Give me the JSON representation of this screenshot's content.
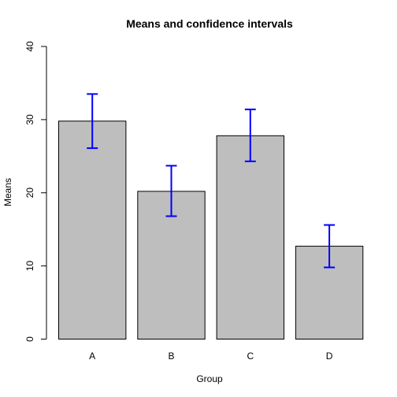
{
  "chart_data": {
    "type": "bar",
    "title": "Means and confidence intervals",
    "xlabel": "Group",
    "ylabel": "Means",
    "categories": [
      "A",
      "B",
      "C",
      "D"
    ],
    "values": [
      29.8,
      20.2,
      27.8,
      12.7
    ],
    "ci_lower": [
      26.1,
      16.8,
      24.3,
      9.8
    ],
    "ci_upper": [
      33.5,
      23.7,
      31.4,
      15.6
    ],
    "ylim": [
      0,
      40
    ],
    "yticks": [
      0,
      10,
      20,
      30,
      40
    ],
    "bar_color": "#bebebe",
    "error_bar_color": "#0000ff",
    "grid": false,
    "legend": "none"
  }
}
